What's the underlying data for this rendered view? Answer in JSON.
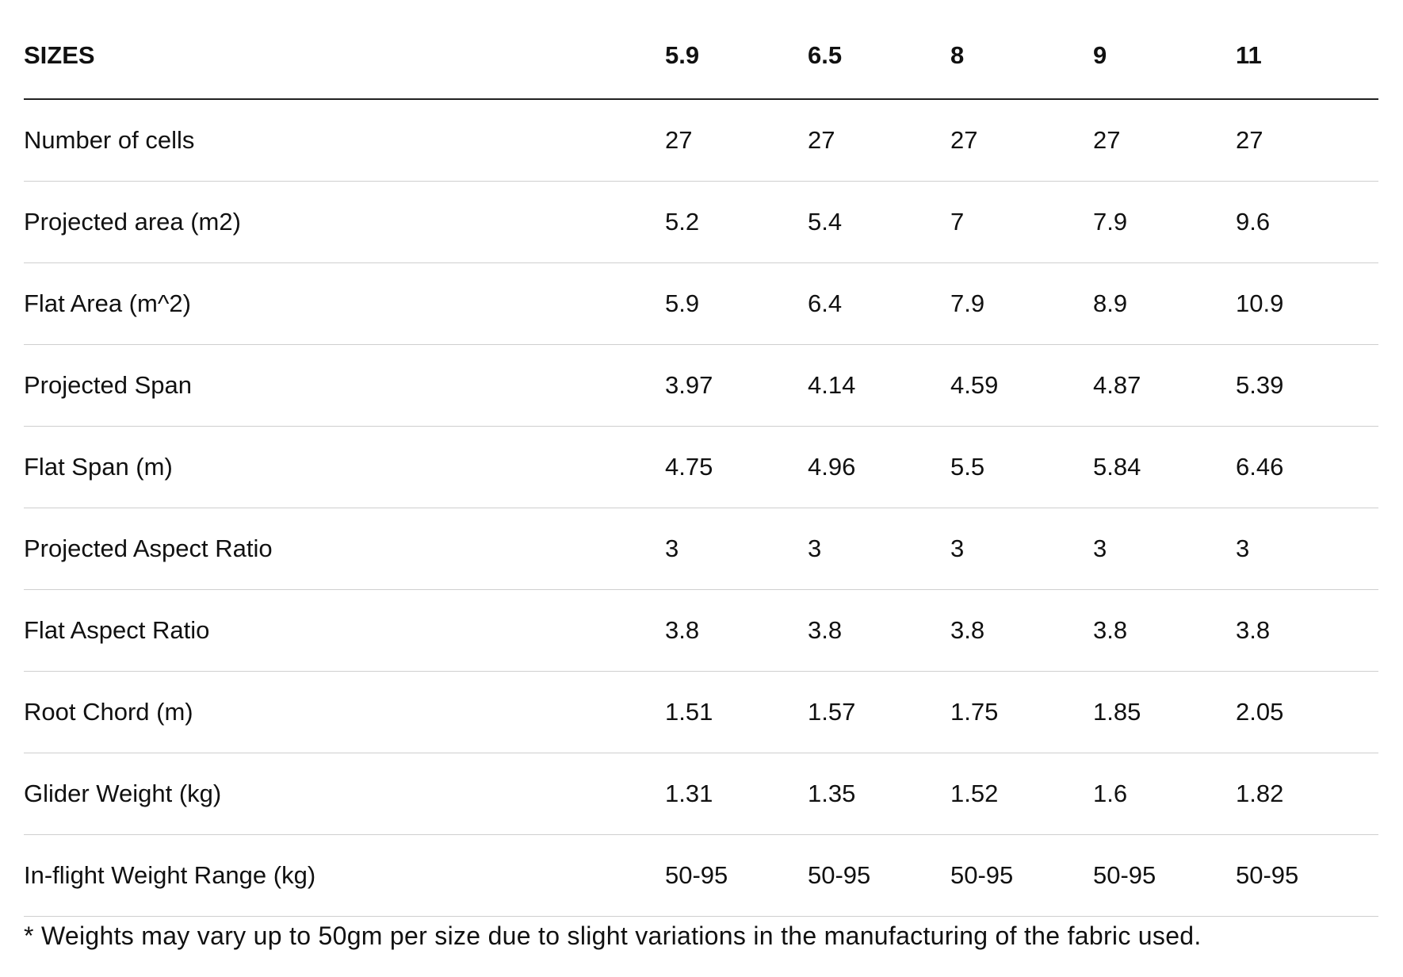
{
  "table": {
    "header": {
      "label": "SIZES",
      "sizes": [
        "5.9",
        "6.5",
        "8",
        "9",
        "11"
      ]
    },
    "rows": [
      {
        "label": "Number of cells",
        "values": [
          "27",
          "27",
          "27",
          "27",
          "27"
        ]
      },
      {
        "label": "Projected area (m2)",
        "values": [
          "5.2",
          "5.4",
          "7",
          "7.9",
          "9.6"
        ]
      },
      {
        "label": "Flat Area (m^2)",
        "values": [
          "5.9",
          "6.4",
          "7.9",
          "8.9",
          "10.9"
        ]
      },
      {
        "label": "Projected Span",
        "values": [
          "3.97",
          "4.14",
          "4.59",
          "4.87",
          "5.39"
        ]
      },
      {
        "label": "Flat Span (m)",
        "values": [
          "4.75",
          "4.96",
          "5.5",
          "5.84",
          "6.46"
        ]
      },
      {
        "label": "Projected Aspect Ratio",
        "values": [
          "3",
          "3",
          "3",
          "3",
          "3"
        ]
      },
      {
        "label": "Flat Aspect Ratio",
        "values": [
          "3.8",
          "3.8",
          "3.8",
          "3.8",
          "3.8"
        ]
      },
      {
        "label": "Root Chord (m)",
        "values": [
          "1.51",
          "1.57",
          "1.75",
          "1.85",
          "2.05"
        ]
      },
      {
        "label": "Glider Weight (kg)",
        "values": [
          "1.31",
          "1.35",
          "1.52",
          "1.6",
          "1.82"
        ]
      },
      {
        "label": "In-flight Weight Range (kg)",
        "values": [
          "50-95",
          "50-95",
          "50-95",
          "50-95",
          "50-95"
        ]
      }
    ]
  },
  "footnote": "* Weights may vary up to 50gm per size due to slight variations in the manufacturing of the fabric used."
}
